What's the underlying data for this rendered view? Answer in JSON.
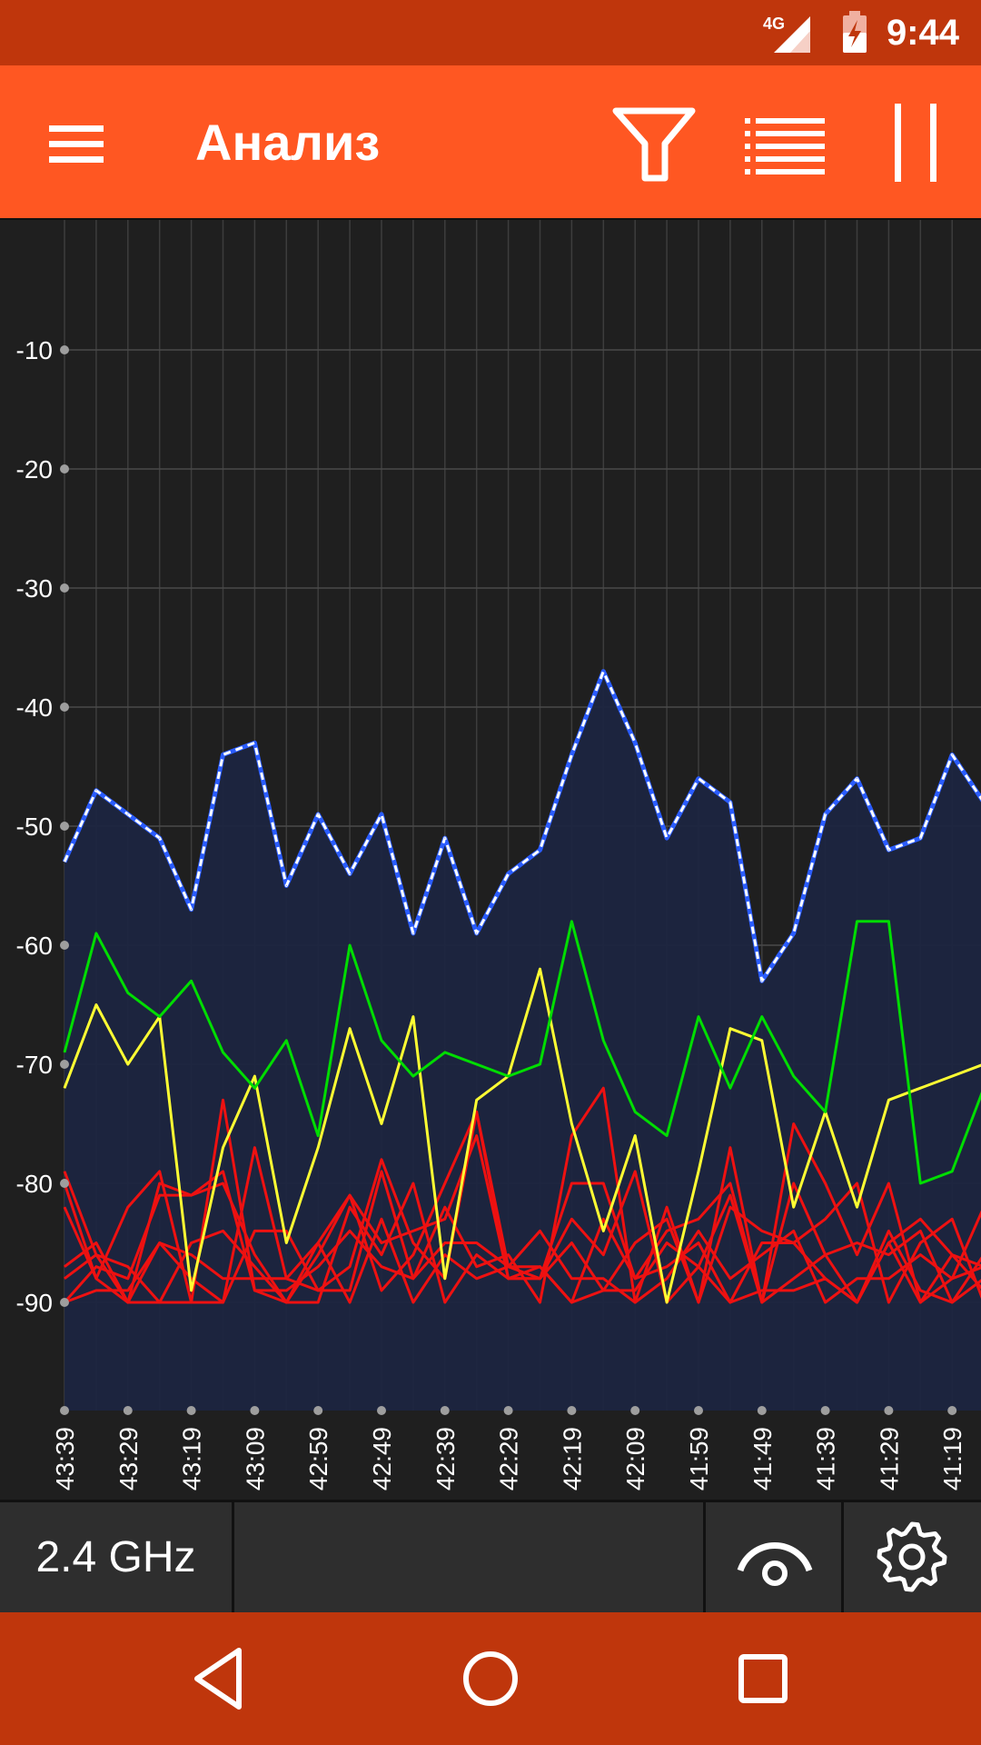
{
  "status_bar": {
    "network_label": "4G",
    "time": "9:44"
  },
  "app_bar": {
    "title": "Анализ",
    "icons": [
      "menu-icon",
      "filter-icon",
      "list-icon",
      "pause-icon"
    ]
  },
  "bottom_bar": {
    "band": "2.4 GHz",
    "icons": [
      "visibility-icon",
      "settings-icon"
    ]
  },
  "nav_bar": {
    "icons": [
      "back-icon",
      "home-icon",
      "recents-icon"
    ]
  },
  "colors": {
    "status_bar": "#bf360c",
    "app_bar": "#ff5722",
    "background": "#1f1f1f",
    "fill_area": "#1c2540",
    "series_top": "#2a5cff",
    "series_green": "#00dd00",
    "series_yellow": "#ffff33",
    "series_red": "#ee1111"
  },
  "chart_data": {
    "type": "line",
    "ylim": [
      -100,
      0
    ],
    "y_ticks": [
      -10,
      -20,
      -30,
      -40,
      -50,
      -60,
      -70,
      -80,
      -90
    ],
    "x_ticks": [
      "43:39",
      "43:29",
      "43:19",
      "43:09",
      "42:59",
      "42:49",
      "42:39",
      "42:29",
      "42:19",
      "42:09",
      "41:59",
      "41:49",
      "41:39",
      "41:29",
      "41:19"
    ],
    "x_grid_count": 30,
    "grid": true,
    "series": [
      {
        "role": "strongest-filled",
        "color": "#2a5cff",
        "style": "dashed-white-over-blue",
        "filled": true,
        "values": [
          -53,
          -47,
          -49,
          -51,
          -57,
          -44,
          -43,
          -55,
          -49,
          -54,
          -49,
          -59,
          -51,
          -59,
          -54,
          -52,
          -44,
          -37,
          -43,
          -51,
          -46,
          -48,
          -63,
          -59,
          -49,
          -46,
          -52,
          -51,
          -44,
          -48
        ]
      },
      {
        "role": "green",
        "color": "#00dd00",
        "values": [
          -69,
          -59,
          -64,
          -66,
          -63,
          -69,
          -72,
          -68,
          -76,
          -60,
          -68,
          -71,
          -69,
          -70,
          -71,
          -70,
          -58,
          -68,
          -74,
          -76,
          -66,
          -72,
          -66,
          -71,
          -74,
          -58,
          -58,
          -80,
          -79,
          -72
        ]
      },
      {
        "role": "yellow",
        "color": "#ffff33",
        "values": [
          -72,
          -65,
          -70,
          -66,
          -89,
          -77,
          -71,
          -85,
          -77,
          -67,
          -75,
          -66,
          -88,
          -73,
          -71,
          -62,
          -75,
          -84,
          -76,
          -90,
          -79,
          -67,
          -68,
          -82,
          -74,
          -82,
          -73,
          -72,
          -71,
          -70
        ]
      },
      {
        "role": "red-1",
        "color": "#ee1111",
        "values": [
          -79,
          -86,
          -87,
          -90,
          -90,
          -90,
          -84,
          -84,
          -89,
          -87,
          -78,
          -85,
          -88,
          -74,
          -88,
          -88,
          -80,
          -80,
          -88,
          -84,
          -83,
          -80,
          -90,
          -75,
          -80,
          -86,
          -80,
          -90,
          -86,
          -87
        ]
      },
      {
        "role": "red-2",
        "color": "#ee1111",
        "values": [
          -82,
          -88,
          -82,
          -79,
          -90,
          -73,
          -89,
          -89,
          -87,
          -84,
          -87,
          -88,
          -82,
          -87,
          -86,
          -90,
          -76,
          -72,
          -90,
          -82,
          -90,
          -77,
          -90,
          -80,
          -86,
          -90,
          -84,
          -89,
          -90,
          -86
        ]
      },
      {
        "role": "red-3",
        "color": "#ee1111",
        "values": [
          -87,
          -85,
          -90,
          -85,
          -88,
          -90,
          -77,
          -88,
          -85,
          -90,
          -83,
          -90,
          -86,
          -88,
          -87,
          -87,
          -90,
          -83,
          -88,
          -87,
          -85,
          -90,
          -89,
          -89,
          -88,
          -90,
          -85,
          -90,
          -88,
          -82
        ]
      },
      {
        "role": "red-4",
        "color": "#ee1111",
        "values": [
          -90,
          -87,
          -88,
          -81,
          -81,
          -80,
          -86,
          -90,
          -90,
          -82,
          -86,
          -80,
          -90,
          -86,
          -88,
          -88,
          -83,
          -86,
          -79,
          -90,
          -87,
          -81,
          -90,
          -88,
          -86,
          -85,
          -86,
          -84,
          -90,
          -88
        ]
      },
      {
        "role": "red-5",
        "color": "#ee1111",
        "values": [
          -88,
          -86,
          -90,
          -90,
          -85,
          -84,
          -87,
          -90,
          -85,
          -81,
          -85,
          -84,
          -83,
          -76,
          -88,
          -87,
          -90,
          -89,
          -85,
          -83,
          -90,
          -82,
          -84,
          -85,
          -83,
          -80,
          -90,
          -85,
          -83,
          -90
        ]
      },
      {
        "role": "red-6",
        "color": "#ee1111",
        "values": [
          -90,
          -89,
          -89,
          -85,
          -86,
          -88,
          -88,
          -88,
          -89,
          -89,
          -79,
          -88,
          -85,
          -85,
          -87,
          -88,
          -85,
          -89,
          -89,
          -85,
          -87,
          -90,
          -85,
          -85,
          -88,
          -90,
          -85,
          -83,
          -86,
          -89
        ]
      },
      {
        "role": "red-7",
        "color": "#ee1111",
        "values": [
          -80,
          -88,
          -90,
          -80,
          -81,
          -79,
          -89,
          -90,
          -86,
          -81,
          -89,
          -86,
          -80,
          -74,
          -87,
          -84,
          -88,
          -88,
          -90,
          -88,
          -84,
          -88,
          -86,
          -84,
          -90,
          -88,
          -88,
          -86,
          -88,
          -87
        ]
      }
    ]
  }
}
